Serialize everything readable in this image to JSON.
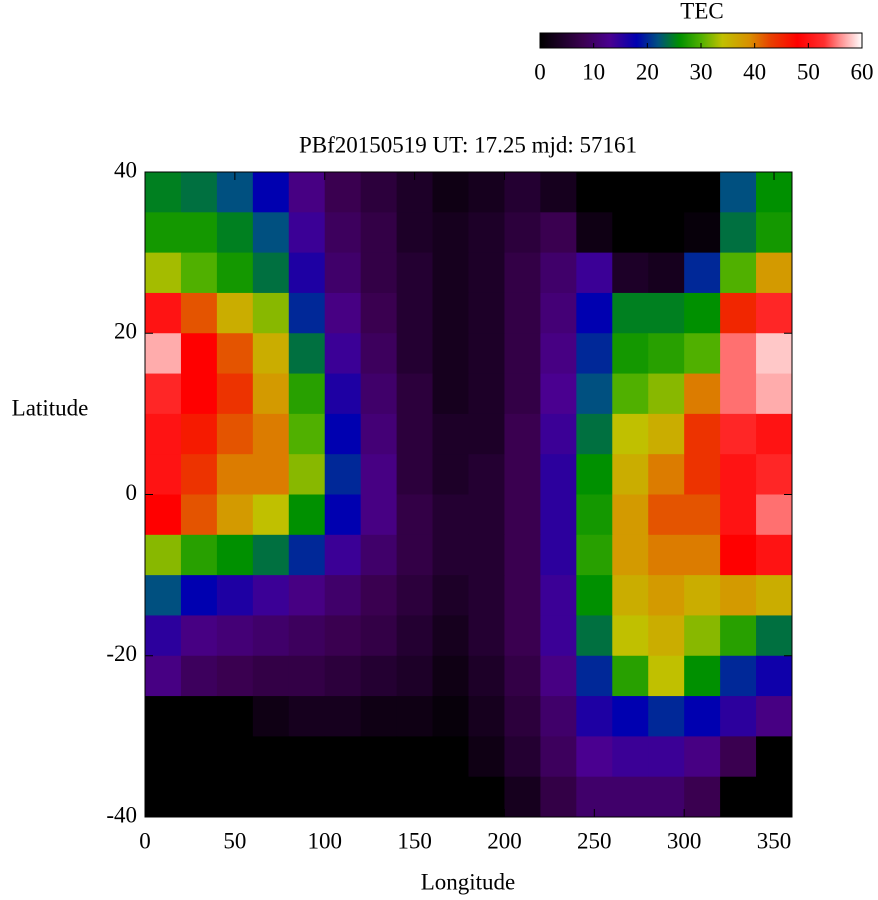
{
  "chart_data": {
    "type": "heatmap",
    "title": "PBf20150519  UT: 17.25  mjd: 57161",
    "xlabel": "Longitude",
    "ylabel": "Latitude",
    "colorbar_label": "TEC",
    "xlim": [
      0,
      360
    ],
    "ylim": [
      -40,
      40
    ],
    "xticks": [
      0,
      50,
      100,
      150,
      200,
      250,
      300,
      350
    ],
    "yticks": [
      -40,
      -20,
      0,
      20,
      40
    ],
    "clim": [
      0,
      60
    ],
    "cticks": [
      0,
      10,
      20,
      30,
      40,
      50,
      60
    ],
    "colormap": [
      {
        "value": 0,
        "color": "#000000"
      },
      {
        "value": 8,
        "color": "#3a0050"
      },
      {
        "value": 13,
        "color": "#4a0090"
      },
      {
        "value": 18,
        "color": "#0000b0"
      },
      {
        "value": 22,
        "color": "#005080"
      },
      {
        "value": 26,
        "color": "#009000"
      },
      {
        "value": 30,
        "color": "#50b000"
      },
      {
        "value": 34,
        "color": "#c0c000"
      },
      {
        "value": 39,
        "color": "#d89000"
      },
      {
        "value": 43,
        "color": "#e84000"
      },
      {
        "value": 48,
        "color": "#ff0000"
      },
      {
        "value": 53,
        "color": "#ff3030"
      },
      {
        "value": 56,
        "color": "#ff9090"
      },
      {
        "value": 60,
        "color": "#ffffff"
      }
    ],
    "x": [
      10,
      30,
      50,
      70,
      90,
      110,
      130,
      150,
      170,
      190,
      210,
      230,
      250,
      270,
      290,
      310,
      330,
      350
    ],
    "y": [
      37.5,
      32.5,
      27.5,
      22.5,
      17.5,
      12.5,
      7.5,
      2.5,
      -2.5,
      -7.5,
      -12.5,
      -17.5,
      -22.5,
      -27.5,
      -32.5,
      -37.5
    ],
    "z": [
      [
        25,
        24,
        22,
        18,
        12,
        8,
        6,
        4,
        2,
        3,
        5,
        3,
        0,
        0,
        0,
        0,
        22,
        26
      ],
      [
        27,
        27,
        25,
        22,
        14,
        9,
        7,
        4,
        3,
        4,
        6,
        8,
        2,
        0,
        0,
        1,
        24,
        27
      ],
      [
        33,
        30,
        27,
        24,
        16,
        10,
        7,
        5,
        3,
        4,
        7,
        10,
        14,
        4,
        3,
        20,
        30,
        38
      ],
      [
        50,
        42,
        36,
        32,
        20,
        12,
        8,
        5,
        3,
        4,
        7,
        11,
        18,
        25,
        25,
        26,
        45,
        52
      ],
      [
        57,
        48,
        42,
        36,
        24,
        14,
        9,
        5,
        3,
        4,
        7,
        12,
        20,
        27,
        28,
        30,
        55,
        58
      ],
      [
        52,
        48,
        44,
        38,
        28,
        16,
        10,
        6,
        3,
        4,
        7,
        13,
        22,
        30,
        32,
        40,
        55,
        57
      ],
      [
        50,
        46,
        42,
        40,
        30,
        18,
        11,
        6,
        4,
        4,
        8,
        14,
        24,
        34,
        36,
        44,
        52,
        50
      ],
      [
        50,
        44,
        40,
        40,
        32,
        20,
        12,
        6,
        4,
        5,
        8,
        15,
        26,
        36,
        40,
        44,
        50,
        52
      ],
      [
        48,
        42,
        38,
        34,
        26,
        18,
        12,
        7,
        5,
        5,
        8,
        15,
        27,
        38,
        42,
        42,
        50,
        55
      ],
      [
        32,
        28,
        26,
        24,
        20,
        14,
        10,
        7,
        5,
        5,
        8,
        15,
        28,
        38,
        40,
        40,
        48,
        50
      ],
      [
        22,
        18,
        16,
        14,
        12,
        10,
        8,
        6,
        4,
        5,
        8,
        14,
        26,
        36,
        38,
        36,
        38,
        36
      ],
      [
        15,
        12,
        11,
        10,
        9,
        8,
        7,
        5,
        3,
        5,
        8,
        14,
        24,
        34,
        36,
        32,
        28,
        24
      ],
      [
        12,
        9,
        8,
        7,
        7,
        6,
        5,
        4,
        2,
        4,
        7,
        12,
        20,
        28,
        34,
        26,
        20,
        17
      ],
      [
        0,
        0,
        0,
        2,
        3,
        3,
        2,
        2,
        1,
        3,
        6,
        10,
        16,
        18,
        20,
        18,
        15,
        12
      ],
      [
        0,
        0,
        0,
        0,
        0,
        0,
        0,
        0,
        0,
        2,
        5,
        9,
        13,
        14,
        14,
        12,
        8,
        0
      ],
      [
        0,
        0,
        0,
        0,
        0,
        0,
        0,
        0,
        0,
        0,
        3,
        7,
        10,
        10,
        10,
        8,
        0,
        0
      ]
    ]
  }
}
